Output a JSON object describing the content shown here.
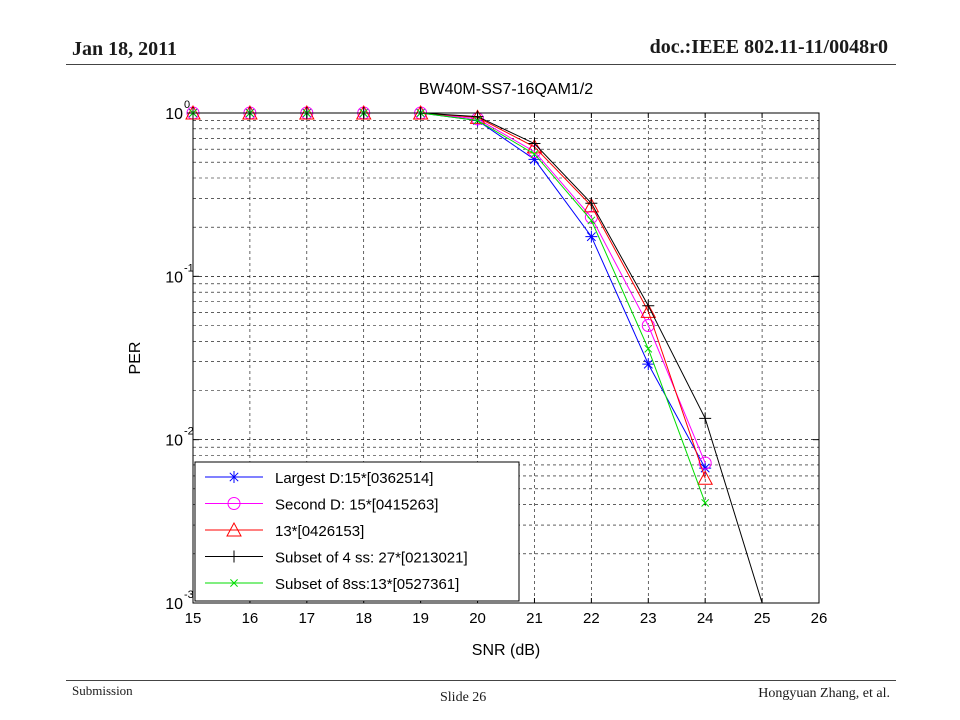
{
  "header": {
    "date": "Jan 18, 2011",
    "doc_id": "doc.:IEEE 802.11-11/0048r0"
  },
  "footer": {
    "submission": "Submission",
    "slide": "Slide 26",
    "author": "Hongyuan Zhang, et al."
  },
  "chart_data": {
    "type": "line",
    "title": "BW40M-SS7-16QAM1/2",
    "xlabel": "SNR (dB)",
    "ylabel": "PER",
    "xlim": [
      15,
      26
    ],
    "ylim": [
      0.001,
      1
    ],
    "yscale": "log",
    "grid": true,
    "legend_position": "bottom-left",
    "x_ticks": [
      "15",
      "16",
      "17",
      "18",
      "19",
      "20",
      "21",
      "22",
      "23",
      "24",
      "25",
      "26"
    ],
    "y_ticks": [
      {
        "base": "10",
        "exp": "0",
        "value": 1
      },
      {
        "base": "10",
        "exp": "-1",
        "value": 0.1
      },
      {
        "base": "10",
        "exp": "-2",
        "value": 0.01
      },
      {
        "base": "10",
        "exp": "-3",
        "value": 0.001
      }
    ],
    "series": [
      {
        "name": "Largest D:15*[0362514]",
        "color": "#0000ff",
        "marker": "asterisk",
        "x": [
          15,
          16,
          17,
          18,
          19,
          20,
          21,
          22,
          23,
          24
        ],
        "y": [
          1.0,
          1.0,
          1.0,
          1.0,
          1.0,
          0.9,
          0.52,
          0.175,
          0.029,
          0.0067
        ]
      },
      {
        "name": "Second D: 15*[0415263]",
        "color": "#ff00ff",
        "marker": "circle",
        "x": [
          15,
          16,
          17,
          18,
          19,
          20,
          21,
          22,
          23,
          24
        ],
        "y": [
          1.0,
          1.0,
          1.0,
          1.0,
          1.0,
          0.92,
          0.58,
          0.23,
          0.05,
          0.0072
        ]
      },
      {
        "name": "13*[0426153]",
        "color": "#ff0000",
        "marker": "triangle",
        "x": [
          15,
          16,
          17,
          18,
          19,
          20,
          21,
          22,
          23,
          24
        ],
        "y": [
          1.0,
          1.0,
          1.0,
          1.0,
          1.0,
          0.94,
          0.62,
          0.27,
          0.061,
          0.0058
        ]
      },
      {
        "name": "Subset of 4 ss: 27*[0213021]",
        "color": "#000000",
        "marker": "plus",
        "x": [
          15,
          16,
          17,
          18,
          19,
          20,
          21,
          22,
          23,
          24,
          25
        ],
        "y": [
          1.0,
          1.0,
          1.0,
          1.0,
          1.0,
          0.95,
          0.65,
          0.28,
          0.066,
          0.0135,
          0.001
        ]
      },
      {
        "name": "Subset of 8ss:13*[0527361]",
        "color": "#00dd00",
        "marker": "x",
        "x": [
          15,
          16,
          17,
          18,
          19,
          20,
          21,
          22,
          23,
          24
        ],
        "y": [
          1.0,
          1.0,
          1.0,
          1.0,
          1.0,
          0.9,
          0.56,
          0.22,
          0.036,
          0.0041
        ]
      }
    ]
  }
}
